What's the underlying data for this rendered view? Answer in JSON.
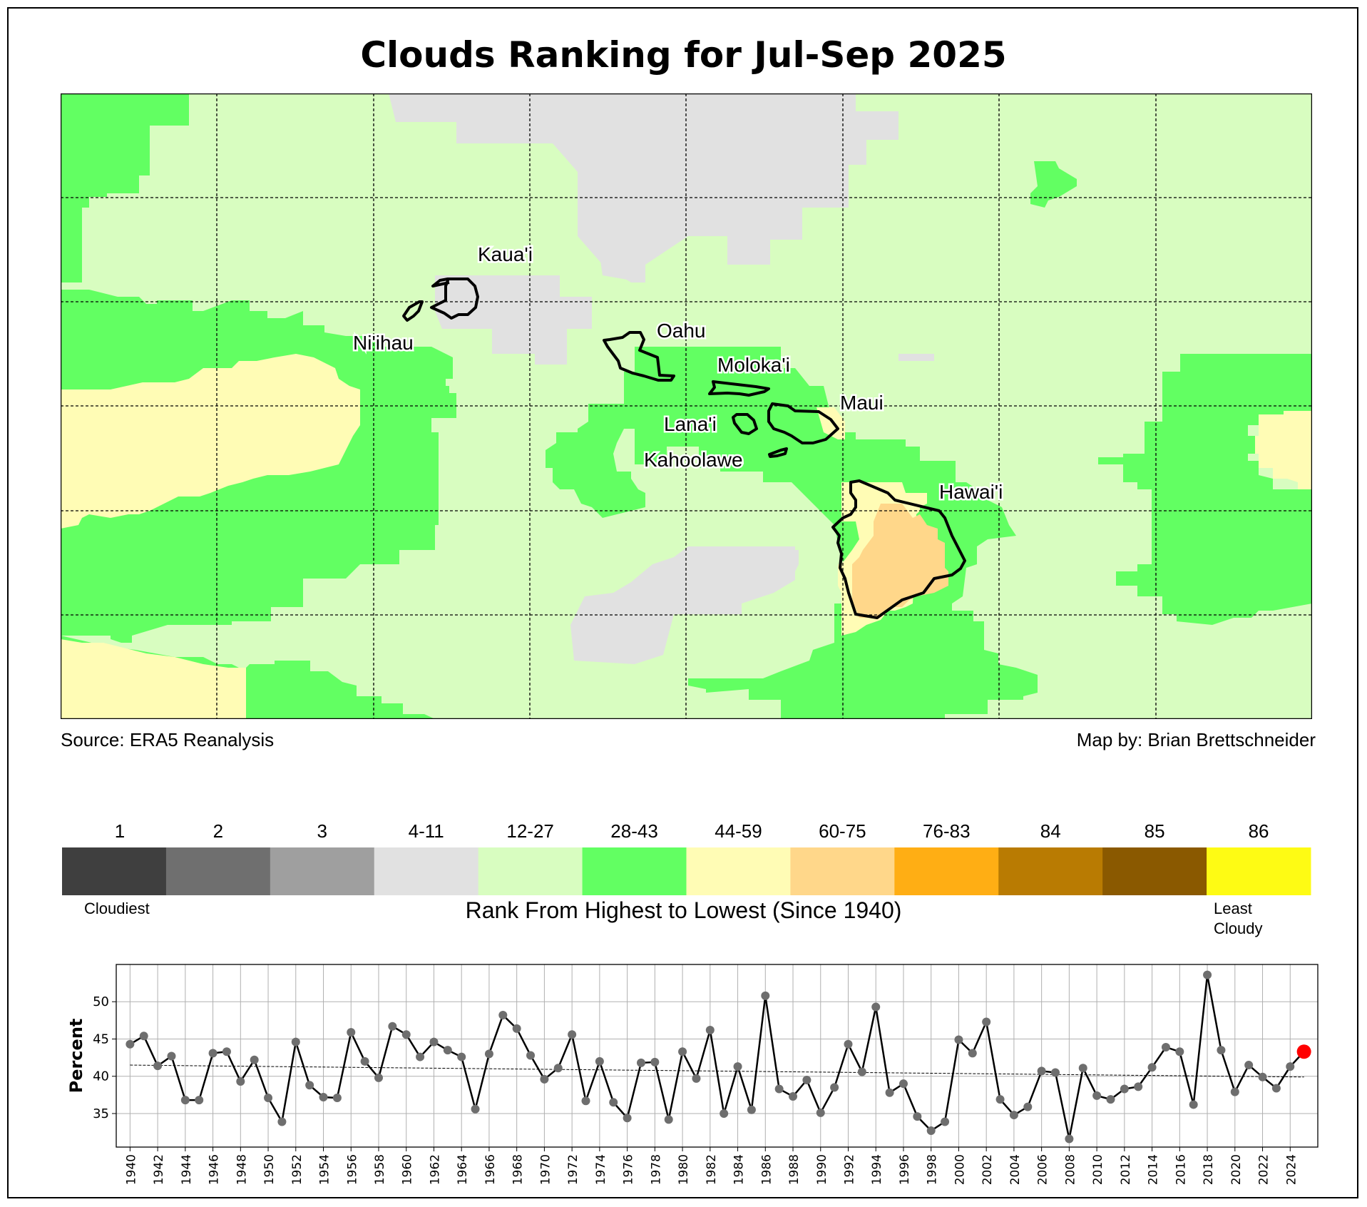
{
  "title": "Clouds Ranking for Jul-Sep 2025",
  "source_text": "Source: ERA5 Reanalysis",
  "credit_text": "Map by: Brian Brettschneider",
  "islands": [
    "Kaua'i",
    "Ni'ihau",
    "Oahu",
    "Moloka'i",
    "Lana'i",
    "Kahoolawe",
    "Maui",
    "Hawai'i"
  ],
  "colors": {
    "rank_1": "#3f3f3f",
    "rank_2": "#6f6f6f",
    "rank_3": "#9f9f9f",
    "rank_4_11": "#e1e1e1",
    "rank_12_27": "#d8fdc0",
    "rank_28_43": "#62ff62",
    "rank_44_59": "#fffcb5",
    "rank_60_75": "#ffd78a",
    "rank_76_83": "#ffae14",
    "rank_84": "#b97b02",
    "rank_85": "#8a5900",
    "rank_86": "#fefb14"
  },
  "colorbar": {
    "labels": [
      "1",
      "2",
      "3",
      "4-11",
      "12-27",
      "28-43",
      "44-59",
      "60-75",
      "76-83",
      "84",
      "85",
      "86"
    ],
    "colors": [
      "#3f3f3f",
      "#6f6f6f",
      "#9f9f9f",
      "#e1e1e1",
      "#d8fdc0",
      "#62ff62",
      "#fffcb5",
      "#ffd78a",
      "#ffae14",
      "#b97b02",
      "#8a5900",
      "#fefb14"
    ],
    "low_end": "Cloudiest",
    "high_end_1": "Least",
    "high_end_2": "Cloudy",
    "axis_label": "Rank From Highest to Lowest (Since 1940)"
  },
  "chart_data": {
    "type": "line",
    "ylabel": "Percent",
    "xlabel": "",
    "xlim": [
      1939,
      2026
    ],
    "ylim": [
      30.5,
      55
    ],
    "yticks": [
      35,
      40,
      45,
      50
    ],
    "xticks": [
      1940,
      1942,
      1944,
      1946,
      1948,
      1950,
      1952,
      1954,
      1956,
      1958,
      1960,
      1962,
      1964,
      1966,
      1968,
      1970,
      1972,
      1974,
      1976,
      1978,
      1980,
      1982,
      1984,
      1986,
      1988,
      1990,
      1992,
      1994,
      1996,
      1998,
      2000,
      2002,
      2004,
      2006,
      2008,
      2010,
      2012,
      2014,
      2016,
      2018,
      2020,
      2022,
      2024
    ],
    "grid": true,
    "x": [
      1940,
      1941,
      1942,
      1943,
      1944,
      1945,
      1946,
      1947,
      1948,
      1949,
      1950,
      1951,
      1952,
      1953,
      1954,
      1955,
      1956,
      1957,
      1958,
      1959,
      1960,
      1961,
      1962,
      1963,
      1964,
      1965,
      1966,
      1967,
      1968,
      1969,
      1970,
      1971,
      1972,
      1973,
      1974,
      1975,
      1976,
      1977,
      1978,
      1979,
      1980,
      1981,
      1982,
      1983,
      1984,
      1985,
      1986,
      1987,
      1988,
      1989,
      1990,
      1991,
      1992,
      1993,
      1994,
      1995,
      1996,
      1997,
      1998,
      1999,
      2000,
      2001,
      2002,
      2003,
      2004,
      2005,
      2006,
      2007,
      2008,
      2009,
      2010,
      2011,
      2012,
      2013,
      2014,
      2015,
      2016,
      2017,
      2018,
      2019,
      2020,
      2021,
      2022,
      2023,
      2024,
      2025
    ],
    "values": [
      44.3,
      45.4,
      41.4,
      42.7,
      36.8,
      36.8,
      43.1,
      43.3,
      39.3,
      42.2,
      37.1,
      33.9,
      44.6,
      38.8,
      37.2,
      37.1,
      45.9,
      42.0,
      39.8,
      46.7,
      45.6,
      42.6,
      44.6,
      43.5,
      42.6,
      35.6,
      43.0,
      48.2,
      46.4,
      42.8,
      39.6,
      41.1,
      45.6,
      36.7,
      42.0,
      36.5,
      34.4,
      41.8,
      41.9,
      34.2,
      43.3,
      39.7,
      46.2,
      35.0,
      41.3,
      35.5,
      50.8,
      38.3,
      37.3,
      39.5,
      35.1,
      38.5,
      44.3,
      40.6,
      49.3,
      37.8,
      39.0,
      34.6,
      32.7,
      33.9,
      44.9,
      43.1,
      47.3,
      36.9,
      34.8,
      35.9,
      40.7,
      40.5,
      31.6,
      41.1,
      37.4,
      36.9,
      38.3,
      38.6,
      41.2,
      43.9,
      43.3,
      36.2,
      53.6,
      43.5,
      37.9,
      41.5,
      39.9,
      38.4,
      41.3,
      43.3
    ],
    "highlight": {
      "x": 2025,
      "value": 43.3,
      "color": "#ff0000"
    },
    "trend": {
      "start": [
        1940,
        41.5
      ],
      "end": [
        2025,
        39.9
      ]
    }
  }
}
